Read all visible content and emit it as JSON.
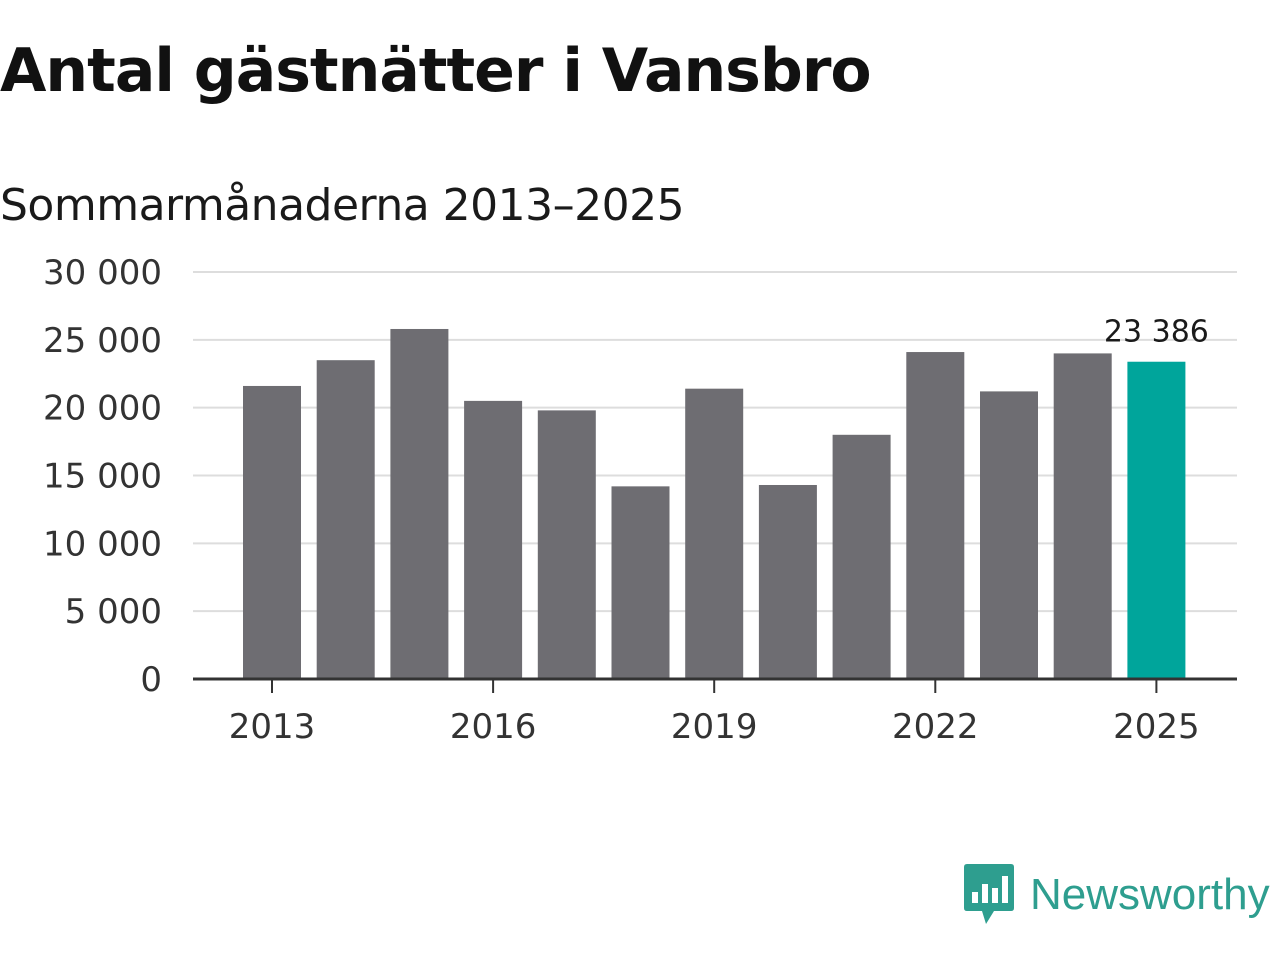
{
  "chart_data": {
    "type": "bar",
    "title": "Antal gästnätter i Vansbro",
    "subtitle": "Sommarmånaderna 2013–2025",
    "categories": [
      "2013",
      "2014",
      "2015",
      "2016",
      "2017",
      "2018",
      "2019",
      "2020",
      "2021",
      "2022",
      "2023",
      "2024",
      "2025"
    ],
    "values": [
      21600,
      23500,
      25800,
      20500,
      19800,
      14200,
      21400,
      14300,
      18000,
      24100,
      21200,
      24000,
      23386
    ],
    "ylim": [
      0,
      30000
    ],
    "yticks": [
      0,
      5000,
      10000,
      15000,
      20000,
      25000,
      30000
    ],
    "ytick_labels": [
      "0",
      "5 000",
      "10 000",
      "15 000",
      "20 000",
      "25 000",
      "30 000"
    ],
    "xtick_labels": [
      "2013",
      "2016",
      "2019",
      "2022",
      "2025"
    ],
    "highlight_label": "23 386",
    "highlight_index": 12,
    "colors": {
      "bar": "#6e6d72",
      "highlight": "#00a59b",
      "grid": "#dddddd",
      "axis": "#333333"
    },
    "grid": true
  },
  "logo": {
    "text": "Newsworthy",
    "icon": "newsworthy-logo-icon",
    "color": "#2e9e8f"
  }
}
